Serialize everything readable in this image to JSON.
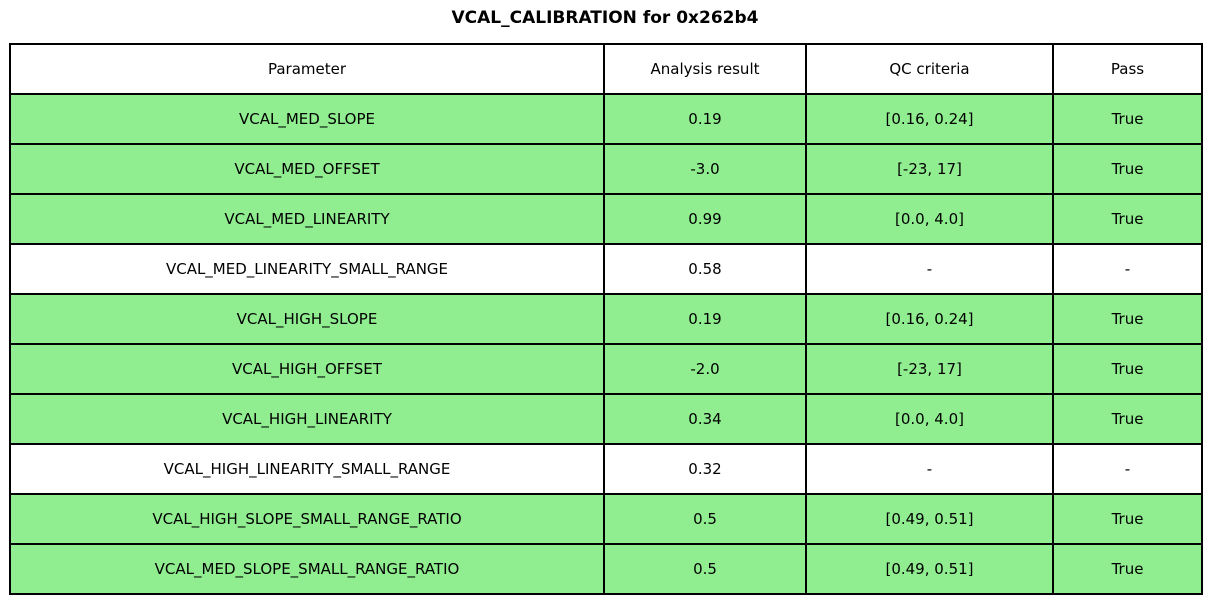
{
  "title": "VCAL_CALIBRATION for 0x262b4",
  "colors": {
    "pass_green": "#90EE90",
    "neutral_white": "#ffffff",
    "border_black": "#000000"
  },
  "chart_data": {
    "type": "table",
    "title": "VCAL_CALIBRATION for 0x262b4",
    "columns": [
      "Parameter",
      "Analysis result",
      "QC criteria",
      "Pass"
    ],
    "rows": [
      {
        "parameter": "VCAL_MED_SLOPE",
        "result": "0.19",
        "criteria": "[0.16, 0.24]",
        "pass": "True",
        "highlighted": true
      },
      {
        "parameter": "VCAL_MED_OFFSET",
        "result": "-3.0",
        "criteria": "[-23, 17]",
        "pass": "True",
        "highlighted": true
      },
      {
        "parameter": "VCAL_MED_LINEARITY",
        "result": "0.99",
        "criteria": "[0.0, 4.0]",
        "pass": "True",
        "highlighted": true
      },
      {
        "parameter": "VCAL_MED_LINEARITY_SMALL_RANGE",
        "result": "0.58",
        "criteria": "-",
        "pass": "-",
        "highlighted": false
      },
      {
        "parameter": "VCAL_HIGH_SLOPE",
        "result": "0.19",
        "criteria": "[0.16, 0.24]",
        "pass": "True",
        "highlighted": true
      },
      {
        "parameter": "VCAL_HIGH_OFFSET",
        "result": "-2.0",
        "criteria": "[-23, 17]",
        "pass": "True",
        "highlighted": true
      },
      {
        "parameter": "VCAL_HIGH_LINEARITY",
        "result": "0.34",
        "criteria": "[0.0, 4.0]",
        "pass": "True",
        "highlighted": true
      },
      {
        "parameter": "VCAL_HIGH_LINEARITY_SMALL_RANGE",
        "result": "0.32",
        "criteria": "-",
        "pass": "-",
        "highlighted": false
      },
      {
        "parameter": "VCAL_HIGH_SLOPE_SMALL_RANGE_RATIO",
        "result": "0.5",
        "criteria": "[0.49, 0.51]",
        "pass": "True",
        "highlighted": true
      },
      {
        "parameter": "VCAL_MED_SLOPE_SMALL_RANGE_RATIO",
        "result": "0.5",
        "criteria": "[0.49, 0.51]",
        "pass": "True",
        "highlighted": true
      }
    ]
  }
}
